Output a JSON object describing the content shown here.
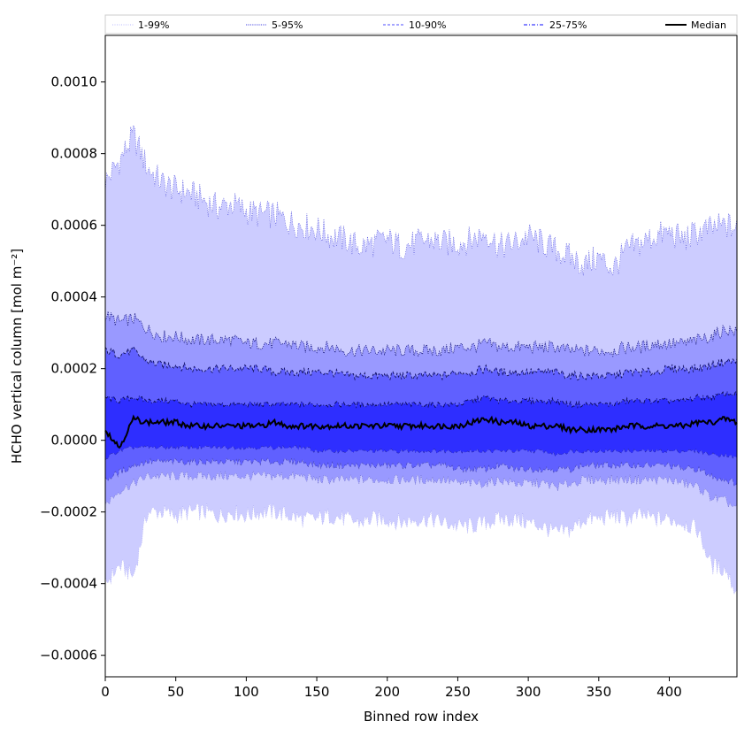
{
  "chart_data": {
    "type": "area",
    "title": "",
    "xlabel": "Binned row index",
    "ylabel": "HCHO vertical column [mol m⁻²]",
    "xlim": [
      0,
      448
    ],
    "ylim": [
      -0.00066,
      0.00113
    ],
    "grid": false,
    "legend": {
      "placement": "top",
      "entries": [
        {
          "name": "1-99%",
          "style": "dotted-thin",
          "color": "#c8c8ff"
        },
        {
          "name": "5-95%",
          "style": "dotted",
          "color": "#6a6ae6"
        },
        {
          "name": "10-90%",
          "style": "dashed",
          "color": "#7272ff"
        },
        {
          "name": "25-75%",
          "style": "dashdot",
          "color": "#3c3cff"
        },
        {
          "name": "Median",
          "style": "solid",
          "color": "#000000"
        }
      ]
    },
    "x_ticks": [
      0,
      50,
      100,
      150,
      200,
      250,
      300,
      350,
      400
    ],
    "x_tick_labels": [
      "0",
      "50",
      "100",
      "150",
      "200",
      "250",
      "300",
      "350",
      "400"
    ],
    "y_ticks": [
      -0.0006,
      -0.0004,
      -0.0002,
      0.0,
      0.0002,
      0.0004,
      0.0006,
      0.0008,
      0.001
    ],
    "y_tick_labels": [
      "−0.0006",
      "−0.0004",
      "−0.0002",
      "0.0000",
      "0.0002",
      "0.0004",
      "0.0006",
      "0.0008",
      "0.0010"
    ],
    "x": [
      0,
      10,
      20,
      30,
      40,
      50,
      60,
      70,
      80,
      90,
      100,
      110,
      120,
      130,
      140,
      150,
      160,
      170,
      180,
      190,
      200,
      210,
      220,
      230,
      240,
      250,
      260,
      270,
      280,
      290,
      300,
      310,
      320,
      330,
      340,
      350,
      360,
      370,
      380,
      390,
      400,
      410,
      420,
      430,
      440,
      448
    ],
    "bands": [
      {
        "name": "1-99%",
        "color": "#ccccff",
        "upper": [
          0.00072,
          0.00078,
          0.00085,
          0.00076,
          0.00072,
          0.0007,
          0.00069,
          0.00067,
          0.00065,
          0.00066,
          0.00064,
          0.00063,
          0.00063,
          0.00061,
          0.0006,
          0.00059,
          0.00057,
          0.00056,
          0.00054,
          0.00055,
          0.00056,
          0.00054,
          0.00055,
          0.00056,
          0.00055,
          0.00055,
          0.00056,
          0.00058,
          0.00054,
          0.00055,
          0.00057,
          0.00055,
          0.00053,
          0.00051,
          0.00049,
          0.00051,
          0.00048,
          0.00053,
          0.00055,
          0.00057,
          0.00058,
          0.00056,
          0.00058,
          0.00059,
          0.0006,
          0.00059
        ],
        "lower": [
          -0.0004,
          -0.00035,
          -0.00038,
          -0.0002,
          -0.0002,
          -0.00021,
          -0.0002,
          -0.0002,
          -0.00021,
          -0.0002,
          -0.00021,
          -0.0002,
          -0.0002,
          -0.00021,
          -0.00022,
          -0.00022,
          -0.00021,
          -0.00022,
          -0.00023,
          -0.00022,
          -0.00022,
          -0.00023,
          -0.00022,
          -0.00022,
          -0.00023,
          -0.00024,
          -0.00024,
          -0.00023,
          -0.00022,
          -0.00022,
          -0.00023,
          -0.00024,
          -0.00026,
          -0.00025,
          -0.00022,
          -0.00022,
          -0.00021,
          -0.00022,
          -0.00021,
          -0.00022,
          -0.00022,
          -0.00023,
          -0.00025,
          -0.00035,
          -0.00036,
          -0.00043
        ]
      },
      {
        "name": "5-95%",
        "color": "#9999ff",
        "upper": [
          0.00035,
          0.00033,
          0.00034,
          0.00031,
          0.00029,
          0.00029,
          0.00028,
          0.00028,
          0.00028,
          0.00028,
          0.00027,
          0.00027,
          0.00027,
          0.00027,
          0.00026,
          0.00026,
          0.00026,
          0.00025,
          0.00025,
          0.00025,
          0.00025,
          0.00025,
          0.00025,
          0.00025,
          0.00025,
          0.00026,
          0.00026,
          0.00027,
          0.00026,
          0.00026,
          0.00026,
          0.00026,
          0.00026,
          0.00025,
          0.00025,
          0.00025,
          0.00025,
          0.00026,
          0.00026,
          0.00027,
          0.00027,
          0.00027,
          0.00028,
          0.00029,
          0.00031,
          0.0003
        ],
        "lower": [
          -0.00018,
          -0.00014,
          -0.00012,
          -0.0001,
          -0.0001,
          -0.0001,
          -0.0001,
          -0.0001,
          -0.0001,
          -0.0001,
          -0.0001,
          -0.0001,
          -0.0001,
          -0.0001,
          -0.0001,
          -0.00011,
          -0.00011,
          -0.00011,
          -0.00011,
          -0.00011,
          -0.00011,
          -0.00011,
          -0.00011,
          -0.00011,
          -0.00011,
          -0.00012,
          -0.00012,
          -0.00012,
          -0.00011,
          -0.00012,
          -0.00012,
          -0.00012,
          -0.00013,
          -0.00012,
          -0.00011,
          -0.00011,
          -0.00011,
          -0.00011,
          -0.00011,
          -0.00011,
          -0.00011,
          -0.00012,
          -0.00013,
          -0.00016,
          -0.00017,
          -0.00019
        ]
      },
      {
        "name": "10-90%",
        "color": "#6060ff",
        "upper": [
          0.00025,
          0.00024,
          0.00025,
          0.00022,
          0.00021,
          0.00021,
          0.0002,
          0.0002,
          0.0002,
          0.0002,
          0.0002,
          0.0002,
          0.00019,
          0.00019,
          0.00019,
          0.00019,
          0.00019,
          0.00018,
          0.00018,
          0.00018,
          0.00018,
          0.00018,
          0.00018,
          0.00018,
          0.00018,
          0.00019,
          0.00019,
          0.0002,
          0.00019,
          0.00019,
          0.00019,
          0.00019,
          0.00019,
          0.00018,
          0.00018,
          0.00018,
          0.00018,
          0.00019,
          0.00019,
          0.00019,
          0.0002,
          0.0002,
          0.0002,
          0.00021,
          0.00022,
          0.00022
        ],
        "lower": [
          -0.00011,
          -9e-05,
          -7e-05,
          -6e-05,
          -6e-05,
          -6e-05,
          -6e-05,
          -6e-05,
          -6e-05,
          -6e-05,
          -6e-05,
          -6e-05,
          -6e-05,
          -6e-05,
          -6e-05,
          -7e-05,
          -7e-05,
          -7e-05,
          -7e-05,
          -7e-05,
          -7e-05,
          -7e-05,
          -7e-05,
          -7e-05,
          -7e-05,
          -8e-05,
          -8e-05,
          -8e-05,
          -7e-05,
          -8e-05,
          -8e-05,
          -8e-05,
          -8e-05,
          -8e-05,
          -7e-05,
          -7e-05,
          -7e-05,
          -7e-05,
          -7e-05,
          -7e-05,
          -7e-05,
          -8e-05,
          -8e-05,
          -0.0001,
          -0.00011,
          -0.00012
        ]
      },
      {
        "name": "25-75%",
        "color": "#2e2eff",
        "upper": [
          0.00012,
          0.00011,
          0.00012,
          0.00011,
          0.00011,
          0.00011,
          0.0001,
          0.0001,
          0.0001,
          0.0001,
          0.0001,
          0.0001,
          0.0001,
          0.0001,
          0.0001,
          0.0001,
          0.0001,
          0.0001,
          0.0001,
          0.0001,
          0.0001,
          0.0001,
          0.0001,
          0.0001,
          0.0001,
          0.0001,
          0.00011,
          0.00012,
          0.00011,
          0.00011,
          0.00011,
          0.00011,
          0.00011,
          0.0001,
          0.0001,
          0.0001,
          0.0001,
          0.00011,
          0.00011,
          0.00011,
          0.00011,
          0.00011,
          0.00012,
          0.00012,
          0.00013,
          0.00013
        ],
        "lower": [
          -5e-05,
          -3e-05,
          -2e-05,
          -2e-05,
          -2e-05,
          -2e-05,
          -2e-05,
          -2e-05,
          -2e-05,
          -2e-05,
          -2e-05,
          -2e-05,
          -2e-05,
          -2e-05,
          -2e-05,
          -3e-05,
          -3e-05,
          -3e-05,
          -3e-05,
          -3e-05,
          -3e-05,
          -3e-05,
          -3e-05,
          -3e-05,
          -3e-05,
          -3e-05,
          -3e-05,
          -3e-05,
          -3e-05,
          -3e-05,
          -3e-05,
          -3e-05,
          -4e-05,
          -3e-05,
          -3e-05,
          -3e-05,
          -3e-05,
          -3e-05,
          -3e-05,
          -3e-05,
          -3e-05,
          -3e-05,
          -3e-05,
          -4e-05,
          -4e-05,
          -5e-05
        ]
      }
    ],
    "median": {
      "name": "Median",
      "color": "#000000",
      "values": [
        3e-05,
        -2e-05,
        6e-05,
        5e-05,
        5e-05,
        5e-05,
        4e-05,
        4e-05,
        4e-05,
        4e-05,
        4e-05,
        4e-05,
        5e-05,
        4e-05,
        4e-05,
        4e-05,
        4e-05,
        4e-05,
        4e-05,
        4e-05,
        4e-05,
        4e-05,
        4e-05,
        4e-05,
        4e-05,
        4e-05,
        5e-05,
        6e-05,
        5e-05,
        5e-05,
        4e-05,
        4e-05,
        4e-05,
        3e-05,
        3e-05,
        3e-05,
        3e-05,
        4e-05,
        4e-05,
        4e-05,
        4e-05,
        4e-05,
        5e-05,
        5e-05,
        6e-05,
        5e-05
      ]
    }
  }
}
